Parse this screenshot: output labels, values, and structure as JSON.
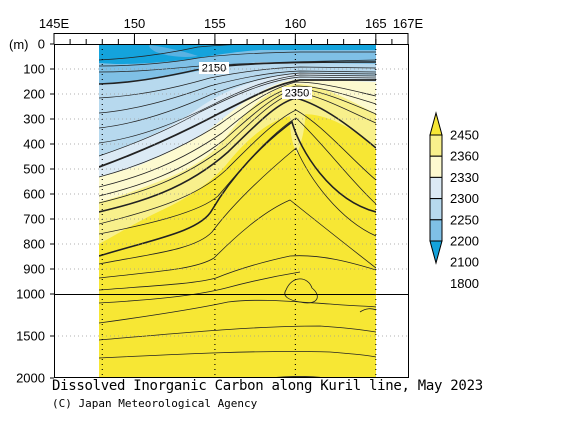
{
  "chart_data": {
    "type": "contour",
    "title": "Dissolved Inorganic Carbon along Kuril line, May 2023",
    "credit": "(C) Japan Meteorological Agency",
    "x_axis": {
      "range": [
        145,
        167
      ],
      "ticks": [
        145,
        150,
        155,
        160,
        165,
        167
      ],
      "tick_labels": [
        "145E",
        "150",
        "155",
        "160",
        "165",
        "167E"
      ]
    },
    "y_axis": {
      "unit_label": "(m)",
      "upper_range": [
        0,
        1000
      ],
      "lower_range": [
        1000,
        2000
      ],
      "ticks": [
        0,
        100,
        200,
        300,
        400,
        500,
        600,
        700,
        800,
        900,
        1000,
        1500,
        2000
      ],
      "tick_labels": [
        "0",
        "100",
        "200",
        "300",
        "400",
        "500",
        "600",
        "700",
        "800",
        "900",
        "1000",
        "1500",
        "2000"
      ]
    },
    "data_extent_lon": [
      148,
      165
    ],
    "station_lons": [
      148,
      155,
      160,
      165
    ],
    "contour_labels": [
      {
        "value": "2150",
        "lon": 155,
        "depth": 90
      },
      {
        "value": "2350",
        "lon": 160,
        "depth": 195
      }
    ],
    "colorbar": {
      "labels": [
        "2450",
        "2360",
        "2330",
        "2300",
        "2250",
        "2200",
        "2100",
        "1800"
      ],
      "bands": [
        {
          "range": "2360-2450",
          "color": "#f7e734"
        },
        {
          "range": "2330-2360",
          "color": "#f8f08c"
        },
        {
          "range": "2300-2330",
          "color": "#fdfad0"
        },
        {
          "range": "2250-2300",
          "color": "#dbeaf5"
        },
        {
          "range": "2200-2250",
          "color": "#b7d9ee"
        },
        {
          "range": "2100-2200",
          "color": "#7fc0e6"
        },
        {
          "range": "1800-2100",
          "color": "#14a3dc"
        }
      ]
    }
  }
}
